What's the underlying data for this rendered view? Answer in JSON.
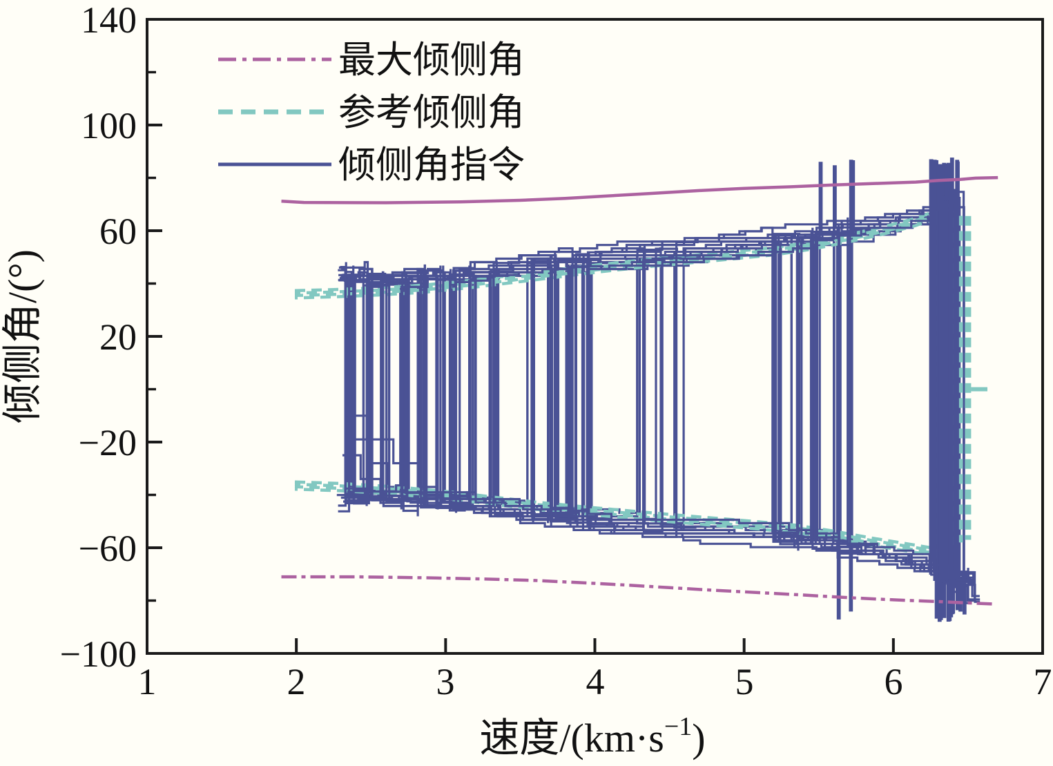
{
  "figure": {
    "background": "#fffef7",
    "frame_color": "#1a1a1a"
  },
  "legend": {
    "items": [
      {
        "label": "最大倾侧角",
        "color": "#AC62A0",
        "style": "dashdot"
      },
      {
        "label": "参考倾侧角",
        "color": "#82C8C1",
        "style": "dashed"
      },
      {
        "label": "倾侧角指令",
        "color": "#4A5295",
        "style": "solid"
      }
    ]
  },
  "chart_data": {
    "type": "line",
    "title": "",
    "ylabel": "倾侧角/(°)",
    "xlabel_parts": {
      "base": "速度/(km·s",
      "sup": "−1",
      "close": ")"
    },
    "xlim": [
      1,
      7
    ],
    "ylim": [
      -100,
      140
    ],
    "x_ticks": [
      1,
      2,
      3,
      4,
      5,
      6,
      7
    ],
    "x_tick_labels": [
      "1",
      "2",
      "3",
      "4",
      "5",
      "6",
      "7"
    ],
    "y_ticks": [
      140,
      100,
      60,
      20,
      -20,
      -60,
      -100
    ],
    "y_tick_labels": [
      "140",
      "100",
      "60",
      "20",
      "−20",
      "−60",
      "−100"
    ],
    "y_minor_ticks": [
      120,
      80,
      40,
      0,
      -40,
      -80
    ],
    "grid": false,
    "legend_position": "upper-left-inside",
    "series": [
      {
        "name": "最大倾侧角",
        "color": "#AC62A0",
        "style": {
          "upper": "solid",
          "lower": "dashdot"
        },
        "points_upper": [
          [
            1.9,
            71.2
          ],
          [
            2.05,
            70.7
          ],
          [
            2.6,
            70.6
          ],
          [
            3.1,
            70.9
          ],
          [
            3.5,
            71.5
          ],
          [
            3.8,
            72.2
          ],
          [
            4.1,
            73.2
          ],
          [
            4.4,
            74.2
          ],
          [
            4.7,
            75.2
          ],
          [
            5.0,
            76.0
          ],
          [
            5.3,
            76.6
          ],
          [
            5.6,
            77.3
          ],
          [
            5.9,
            77.9
          ],
          [
            6.15,
            78.4
          ],
          [
            6.3,
            79.0
          ],
          [
            6.45,
            79.4
          ],
          [
            6.55,
            79.9
          ],
          [
            6.7,
            80.1
          ]
        ],
        "points_lower": [
          [
            1.9,
            -71.0
          ],
          [
            2.4,
            -71.0
          ],
          [
            2.9,
            -71.4
          ],
          [
            3.3,
            -71.9
          ],
          [
            3.6,
            -72.4
          ],
          [
            3.9,
            -73.2
          ],
          [
            4.2,
            -74.1
          ],
          [
            4.5,
            -75.1
          ],
          [
            4.8,
            -76.1
          ],
          [
            5.1,
            -77.0
          ],
          [
            5.4,
            -77.9
          ],
          [
            5.7,
            -78.9
          ],
          [
            6.0,
            -79.7
          ],
          [
            6.3,
            -80.4
          ],
          [
            6.5,
            -80.9
          ],
          [
            6.67,
            -81.3
          ]
        ]
      },
      {
        "name": "参考倾侧角",
        "color": "#82C8C1",
        "style": {
          "upper": "dashed",
          "lower": "dashed"
        },
        "points_upper": [
          [
            1.99,
            36.0
          ],
          [
            2.25,
            36.4
          ],
          [
            2.55,
            37.1
          ],
          [
            2.85,
            38.1
          ],
          [
            3.15,
            39.8
          ],
          [
            3.45,
            41.8
          ],
          [
            3.75,
            43.9
          ],
          [
            4.05,
            46.0
          ],
          [
            4.35,
            47.8
          ],
          [
            4.65,
            49.3
          ],
          [
            4.95,
            50.9
          ],
          [
            5.2,
            52.3
          ],
          [
            5.45,
            54.4
          ],
          [
            5.7,
            57.2
          ],
          [
            5.95,
            60.4
          ],
          [
            6.15,
            63.4
          ],
          [
            6.3,
            66.5
          ],
          [
            6.37,
            68.0
          ]
        ],
        "points_lower": [
          [
            1.99,
            -36.4
          ],
          [
            2.3,
            -37.0
          ],
          [
            2.65,
            -38.2
          ],
          [
            3.0,
            -40.0
          ],
          [
            3.3,
            -42.0
          ],
          [
            3.6,
            -44.0
          ],
          [
            3.9,
            -45.7
          ],
          [
            4.2,
            -47.2
          ],
          [
            4.5,
            -48.7
          ],
          [
            4.8,
            -50.1
          ],
          [
            5.1,
            -51.5
          ],
          [
            5.35,
            -52.8
          ],
          [
            5.6,
            -55.0
          ],
          [
            5.85,
            -57.6
          ],
          [
            6.1,
            -59.9
          ],
          [
            6.25,
            -61.3
          ],
          [
            6.36,
            -62.3
          ]
        ],
        "terminal_oscillation": {
          "x_range": [
            6.28,
            6.5
          ],
          "y_top": [
            66,
            68
          ],
          "y_bottom": [
            -61,
            -57
          ],
          "n_strokes": 5
        },
        "terminal_zero": {
          "x": [
            6.52,
            6.63
          ],
          "y": 0
        }
      },
      {
        "name": "倾侧角指令",
        "color": "#4A5295",
        "style": {
          "upper": "solid",
          "lower": "solid"
        },
        "monte_carlo": {
          "seed": 11,
          "n_trajectories": 26,
          "start_x": [
            2.27,
            2.34
          ],
          "end_x": [
            6.44,
            6.55
          ],
          "start_band_offset": [
            3,
            10
          ],
          "band_offset": [
            1,
            7
          ],
          "low_starts": {
            "2": -19,
            "9": -25,
            "17": -10
          },
          "switch_clusters": [
            {
              "x": 2.36,
              "w": 0.8
            },
            {
              "x": 2.48,
              "w": 0.7
            },
            {
              "x": 2.6,
              "w": 0.75
            },
            {
              "x": 2.72,
              "w": 0.7
            },
            {
              "x": 2.84,
              "w": 0.65
            },
            {
              "x": 2.96,
              "w": 0.6
            },
            {
              "x": 3.06,
              "w": 0.5
            },
            {
              "x": 3.18,
              "w": 0.3
            },
            {
              "x": 3.32,
              "w": 0.35
            },
            {
              "x": 3.56,
              "w": 0.25
            },
            {
              "x": 3.72,
              "w": 0.45
            },
            {
              "x": 3.84,
              "w": 0.5
            },
            {
              "x": 3.95,
              "w": 0.4
            },
            {
              "x": 4.3,
              "w": 0.45
            },
            {
              "x": 4.42,
              "w": 0.3
            },
            {
              "x": 4.56,
              "w": 0.25
            },
            {
              "x": 5.22,
              "w": 0.45
            },
            {
              "x": 5.35,
              "w": 0.4
            },
            {
              "x": 5.48,
              "w": 0.35
            },
            {
              "x": 5.62,
              "w": 0.4
            },
            {
              "x": 5.7,
              "w": 0.3
            },
            {
              "x": 6.28,
              "w": 0.8
            },
            {
              "x": 6.36,
              "w": 0.8
            },
            {
              "x": 6.44,
              "w": 0.7
            }
          ],
          "overshoot_deg": [
            83,
            88
          ],
          "end_hook_deg": [
            -78,
            -82
          ]
        }
      }
    ]
  }
}
